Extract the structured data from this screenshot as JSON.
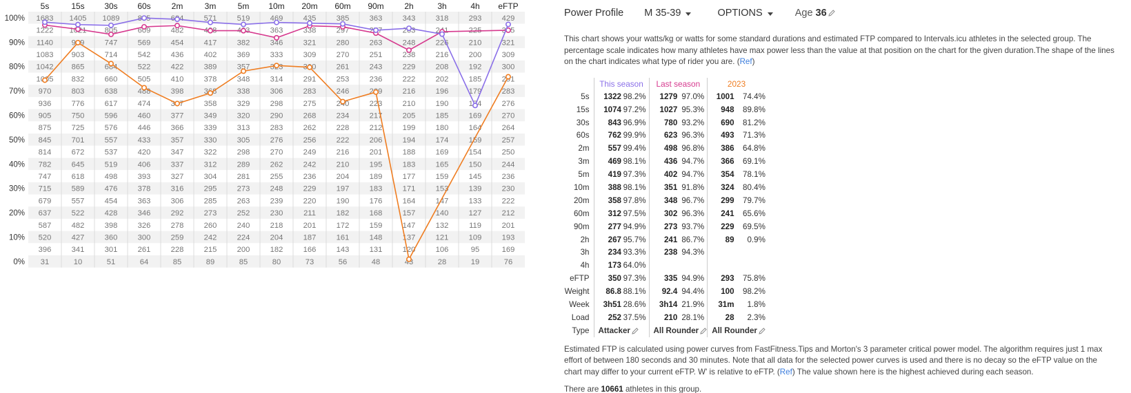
{
  "grid": {
    "durations": [
      "5s",
      "15s",
      "30s",
      "60s",
      "2m",
      "3m",
      "5m",
      "10m",
      "20m",
      "60m",
      "90m",
      "2h",
      "3h",
      "4h",
      "eFTP"
    ],
    "percent_labels": [
      "100%",
      "90%",
      "80%",
      "70%",
      "60%",
      "50%",
      "40%",
      "30%",
      "20%",
      "10%",
      "0%"
    ],
    "rows": [
      [
        "1683",
        "1405",
        "1089",
        "805",
        "624",
        "571",
        "519",
        "469",
        "435",
        "385",
        "363",
        "343",
        "318",
        "293",
        "429"
      ],
      [
        "1222",
        "1021",
        "805",
        "609",
        "482",
        "438",
        "403",
        "363",
        "338",
        "297",
        "277",
        "263",
        "241",
        "225",
        "335"
      ],
      [
        "1140",
        "949",
        "747",
        "569",
        "454",
        "417",
        "382",
        "346",
        "321",
        "280",
        "263",
        "248",
        "226",
        "210",
        "321"
      ],
      [
        "1083",
        "903",
        "714",
        "542",
        "436",
        "402",
        "369",
        "333",
        "309",
        "270",
        "251",
        "238",
        "216",
        "200",
        "309"
      ],
      [
        "1042",
        "865",
        "684",
        "522",
        "422",
        "389",
        "357",
        "323",
        "300",
        "261",
        "243",
        "229",
        "208",
        "192",
        "300"
      ],
      [
        "1005",
        "832",
        "660",
        "505",
        "410",
        "378",
        "348",
        "314",
        "291",
        "253",
        "236",
        "222",
        "202",
        "185",
        "291"
      ],
      [
        "970",
        "803",
        "638",
        "488",
        "398",
        "368",
        "338",
        "306",
        "283",
        "246",
        "229",
        "216",
        "196",
        "179",
        "283"
      ],
      [
        "936",
        "776",
        "617",
        "474",
        "387",
        "358",
        "329",
        "298",
        "275",
        "240",
        "223",
        "210",
        "190",
        "174",
        "276"
      ],
      [
        "905",
        "750",
        "596",
        "460",
        "377",
        "349",
        "320",
        "290",
        "268",
        "234",
        "217",
        "205",
        "185",
        "169",
        "270"
      ],
      [
        "875",
        "725",
        "576",
        "446",
        "366",
        "339",
        "313",
        "283",
        "262",
        "228",
        "212",
        "199",
        "180",
        "164",
        "264"
      ],
      [
        "845",
        "701",
        "557",
        "433",
        "357",
        "330",
        "305",
        "276",
        "256",
        "222",
        "206",
        "194",
        "174",
        "159",
        "257"
      ],
      [
        "814",
        "672",
        "537",
        "420",
        "347",
        "322",
        "298",
        "270",
        "249",
        "216",
        "201",
        "188",
        "169",
        "154",
        "250"
      ],
      [
        "782",
        "645",
        "519",
        "406",
        "337",
        "312",
        "289",
        "262",
        "242",
        "210",
        "195",
        "183",
        "165",
        "150",
        "244"
      ],
      [
        "747",
        "618",
        "498",
        "393",
        "327",
        "304",
        "281",
        "255",
        "236",
        "204",
        "189",
        "177",
        "159",
        "145",
        "236"
      ],
      [
        "715",
        "589",
        "476",
        "378",
        "316",
        "295",
        "273",
        "248",
        "229",
        "197",
        "183",
        "171",
        "153",
        "139",
        "230"
      ],
      [
        "679",
        "557",
        "454",
        "363",
        "306",
        "285",
        "263",
        "239",
        "220",
        "190",
        "176",
        "164",
        "147",
        "133",
        "222"
      ],
      [
        "637",
        "522",
        "428",
        "346",
        "292",
        "273",
        "252",
        "230",
        "211",
        "182",
        "168",
        "157",
        "140",
        "127",
        "212"
      ],
      [
        "587",
        "482",
        "398",
        "326",
        "278",
        "260",
        "240",
        "218",
        "201",
        "172",
        "159",
        "147",
        "132",
        "119",
        "201"
      ],
      [
        "520",
        "427",
        "360",
        "300",
        "259",
        "242",
        "224",
        "204",
        "187",
        "161",
        "148",
        "137",
        "121",
        "109",
        "193"
      ],
      [
        "396",
        "341",
        "301",
        "261",
        "228",
        "215",
        "200",
        "182",
        "166",
        "143",
        "131",
        "120",
        "106",
        "95",
        "169"
      ],
      [
        "31",
        "10",
        "51",
        "64",
        "85",
        "89",
        "85",
        "80",
        "73",
        "56",
        "48",
        "43",
        "28",
        "19",
        "76"
      ]
    ],
    "series": [
      {
        "name": "This season",
        "color": "#8a6fe8",
        "percentiles": [
          98.2,
          97.2,
          96.9,
          99.9,
          99.4,
          98.1,
          97.3,
          98.1,
          97.8,
          97.5,
          94.9,
          95.7,
          93.3,
          64.0,
          97.3
        ]
      },
      {
        "name": "Last season",
        "color": "#d6398e",
        "percentiles": [
          97.0,
          95.3,
          93.2,
          96.3,
          96.8,
          94.7,
          94.7,
          91.8,
          96.7,
          96.3,
          93.7,
          86.7,
          94.3,
          null,
          94.9
        ]
      },
      {
        "name": "2023",
        "color": "#ef7d21",
        "percentiles": [
          74.4,
          89.8,
          81.2,
          71.3,
          64.8,
          69.1,
          78.1,
          80.4,
          79.7,
          65.6,
          69.5,
          0.9,
          null,
          null,
          75.8
        ]
      }
    ]
  },
  "header": {
    "title": "Power Profile",
    "group_select": "M 35-39",
    "options_label": "OPTIONS",
    "age_label": "Age",
    "age_value": "36"
  },
  "description": {
    "text": "This chart shows your watts/kg or watts for some standard durations and estimated FTP compared to Intervals.icu athletes in the selected group. The percentage scale indicates how many athletes have max power less than the value at that position on the chart for the given duration.The shape of the lines on the chart indicates what type of rider you are. (",
    "ref": "Ref",
    "close": ")"
  },
  "stats": {
    "columns": [
      "This season",
      "Last season",
      "2023"
    ],
    "rows": [
      {
        "label": "5s",
        "cells": [
          [
            "1322",
            "98.2%"
          ],
          [
            "1279",
            "97.0%"
          ],
          [
            "1001",
            "74.4%"
          ]
        ]
      },
      {
        "label": "15s",
        "cells": [
          [
            "1074",
            "97.2%"
          ],
          [
            "1027",
            "95.3%"
          ],
          [
            "948",
            "89.8%"
          ]
        ]
      },
      {
        "label": "30s",
        "cells": [
          [
            "843",
            "96.9%"
          ],
          [
            "780",
            "93.2%"
          ],
          [
            "690",
            "81.2%"
          ]
        ]
      },
      {
        "label": "60s",
        "cells": [
          [
            "762",
            "99.9%"
          ],
          [
            "623",
            "96.3%"
          ],
          [
            "493",
            "71.3%"
          ]
        ]
      },
      {
        "label": "2m",
        "cells": [
          [
            "557",
            "99.4%"
          ],
          [
            "498",
            "96.8%"
          ],
          [
            "386",
            "64.8%"
          ]
        ]
      },
      {
        "label": "3m",
        "cells": [
          [
            "469",
            "98.1%"
          ],
          [
            "436",
            "94.7%"
          ],
          [
            "366",
            "69.1%"
          ]
        ]
      },
      {
        "label": "5m",
        "cells": [
          [
            "419",
            "97.3%"
          ],
          [
            "402",
            "94.7%"
          ],
          [
            "354",
            "78.1%"
          ]
        ]
      },
      {
        "label": "10m",
        "cells": [
          [
            "388",
            "98.1%"
          ],
          [
            "351",
            "91.8%"
          ],
          [
            "324",
            "80.4%"
          ]
        ]
      },
      {
        "label": "20m",
        "cells": [
          [
            "358",
            "97.8%"
          ],
          [
            "348",
            "96.7%"
          ],
          [
            "299",
            "79.7%"
          ]
        ]
      },
      {
        "label": "60m",
        "cells": [
          [
            "312",
            "97.5%"
          ],
          [
            "302",
            "96.3%"
          ],
          [
            "241",
            "65.6%"
          ]
        ]
      },
      {
        "label": "90m",
        "cells": [
          [
            "277",
            "94.9%"
          ],
          [
            "273",
            "93.7%"
          ],
          [
            "229",
            "69.5%"
          ]
        ]
      },
      {
        "label": "2h",
        "cells": [
          [
            "267",
            "95.7%"
          ],
          [
            "241",
            "86.7%"
          ],
          [
            "89",
            "0.9%"
          ]
        ]
      },
      {
        "label": "3h",
        "cells": [
          [
            "234",
            "93.3%"
          ],
          [
            "238",
            "94.3%"
          ],
          [
            "",
            ""
          ]
        ]
      },
      {
        "label": "4h",
        "cells": [
          [
            "173",
            "64.0%"
          ],
          [
            "",
            ""
          ],
          [
            "",
            ""
          ]
        ]
      },
      {
        "label": "eFTP",
        "cells": [
          [
            "350",
            "97.3%"
          ],
          [
            "335",
            "94.9%"
          ],
          [
            "293",
            "75.8%"
          ]
        ]
      },
      {
        "label": "Weight",
        "cells": [
          [
            "86.8",
            "88.1%"
          ],
          [
            "92.4",
            "94.4%"
          ],
          [
            "100",
            "98.2%"
          ]
        ]
      },
      {
        "label": "Week",
        "cells": [
          [
            "3h51",
            "28.6%"
          ],
          [
            "3h14",
            "21.9%"
          ],
          [
            "31m",
            "1.8%"
          ]
        ]
      },
      {
        "label": "Load",
        "cells": [
          [
            "252",
            "37.5%"
          ],
          [
            "210",
            "28.1%"
          ],
          [
            "28",
            "2.3%"
          ]
        ]
      }
    ],
    "type_label": "Type",
    "types": [
      "Attacker",
      "All Rounder",
      "All Rounder"
    ]
  },
  "eftp_note": {
    "text": "Estimated FTP is calculated using power curves from FastFitness.Tips and Morton's 3 parameter critical power model. The algorithm requires just 1 max effort of between 180 seconds and 30 minutes. Note that all data for the selected power curves is used and there is no decay so the eFTP value on the chart may differ to your current eFTP. W' is relative to eFTP. (",
    "ref": "Ref",
    "tail": ") The value shown here is the highest achieved during each season."
  },
  "athletes": {
    "prefix": "There are",
    "count": "10661",
    "suffix": "athletes in this group."
  }
}
